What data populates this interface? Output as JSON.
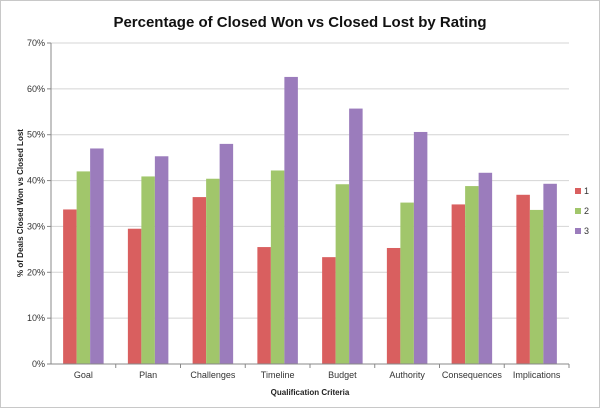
{
  "chart_data": {
    "type": "bar",
    "title": "Percentage of Closed Won vs Closed Lost by Rating",
    "xlabel": "Qualification Criteria",
    "ylabel": "% of Deals Closed Won vs Closed Lost",
    "ylim": [
      0,
      70
    ],
    "yticks": [
      "0%",
      "10%",
      "20%",
      "30%",
      "40%",
      "50%",
      "60%",
      "70%"
    ],
    "grid": true,
    "legend_position": "right",
    "categories": [
      "Goal",
      "Plan",
      "Challenges",
      "Timeline",
      "Budget",
      "Authority",
      "Consequences",
      "Implications"
    ],
    "series": [
      {
        "name": "1",
        "color": "#d95f5f",
        "values": [
          33.7,
          29.5,
          36.4,
          25.5,
          23.3,
          25.3,
          34.8,
          36.9
        ]
      },
      {
        "name": "2",
        "color": "#a1c66b",
        "values": [
          42.0,
          40.9,
          40.4,
          42.2,
          39.2,
          35.2,
          38.8,
          33.6
        ]
      },
      {
        "name": "3",
        "color": "#9b7cbc",
        "values": [
          47.0,
          45.3,
          48.0,
          62.6,
          55.7,
          50.6,
          41.7,
          39.3
        ]
      }
    ]
  }
}
